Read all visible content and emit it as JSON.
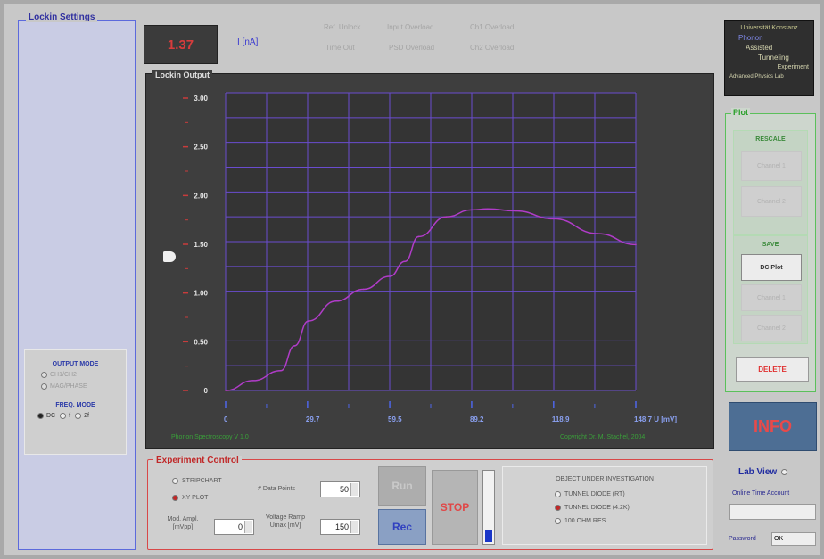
{
  "lockin_settings": {
    "title": "Lockin Settings",
    "output_mode": {
      "title": "OUTPUT MODE",
      "options": [
        "CH1/CH2",
        "MAG/PHASE"
      ],
      "selected": "CH1/CH2"
    },
    "freq_mode": {
      "title": "FREQ. MODE",
      "options": [
        "DC",
        "f",
        "2f"
      ],
      "selected": "DC"
    }
  },
  "readout": {
    "value": "1.37",
    "unit": "I [nA]"
  },
  "status_leds": [
    "Ref. Unlock",
    "Input Overload",
    "Ch1 Overload",
    "Time Out",
    "PSD Overload",
    "Ch2 Overload"
  ],
  "lockin_output": {
    "title": "Lockin Output",
    "footer_left": "Phonon Spectroscopy  V 1.0",
    "footer_right": "Copyright Dr. M. Stachel, 2004"
  },
  "chart_data": {
    "type": "line",
    "x_tick_labels": [
      "0",
      "29.7",
      "59.5",
      "89.2",
      "118.9",
      "148.7 U [mV]"
    ],
    "y_tick_labels": [
      "3.00",
      "2.50",
      "2.00",
      "1.50",
      "1.00",
      "0.50",
      "0"
    ],
    "xlim": [
      0,
      148.7
    ],
    "ylim": [
      0,
      3.0
    ],
    "series": [
      {
        "color": "#b03cc8",
        "x": [
          0,
          10,
          20,
          25,
          30,
          40,
          50,
          59.5,
          65,
          70,
          80,
          89.2,
          95,
          105,
          118.9,
          135,
          148.7
        ],
        "y": [
          0,
          0.1,
          0.2,
          0.45,
          0.7,
          0.9,
          1.02,
          1.15,
          1.3,
          1.55,
          1.75,
          1.82,
          1.83,
          1.81,
          1.73,
          1.58,
          1.47
        ]
      }
    ],
    "grid": true
  },
  "experiment_control": {
    "title": "Experiment Control",
    "plot_modes": [
      "STRIPCHART",
      "XY PLOT"
    ],
    "selected_plot_mode": "XY PLOT",
    "data_points_label": "# Data Points",
    "data_points_value": "50",
    "mod_ampl_label_1": "Mod. Ampl.",
    "mod_ampl_label_2": "[mVpp]",
    "mod_ampl_value": "0",
    "voltage_ramp_label_1": "Voltage Ramp",
    "voltage_ramp_label_2": "Umax [mV]",
    "voltage_ramp_value": "150",
    "run_label": "Run",
    "rec_label": "Rec",
    "stop_label": "STOP",
    "progress": 0.18,
    "object": {
      "title": "OBJECT UNDER INVESTIGATION",
      "options": [
        "TUNNEL DIODE (RT)",
        "TUNNEL DIODE (4.2K)",
        "100 OHM RES."
      ],
      "selected": "TUNNEL DIODE (4.2K)"
    }
  },
  "university": {
    "lines": [
      "Universität Konstanz",
      "Phonon",
      "Assisted",
      "Tunneling",
      "Experiment",
      "Advanced Physics Lab"
    ]
  },
  "plot_panel": {
    "title": "Plot",
    "rescale_title": "RESCALE",
    "rescale_buttons": [
      "Channel 1",
      "Channel 2"
    ],
    "save_title": "SAVE",
    "save_buttons": [
      "DC Plot",
      "Channel 1",
      "Channel 2"
    ],
    "delete_label": "DELETE"
  },
  "info_label": "INFO",
  "labview": {
    "title": "Lab View",
    "account_label": "Online Time Account",
    "password_label": "Password",
    "password_value": "OK"
  },
  "colors": {
    "plot_bg": "#343434",
    "grid": "#6a4ccf",
    "curve": "#b03cc8",
    "accent_red": "#d84848",
    "accent_green": "#5bc05b",
    "accent_blue": "#3030a0"
  }
}
